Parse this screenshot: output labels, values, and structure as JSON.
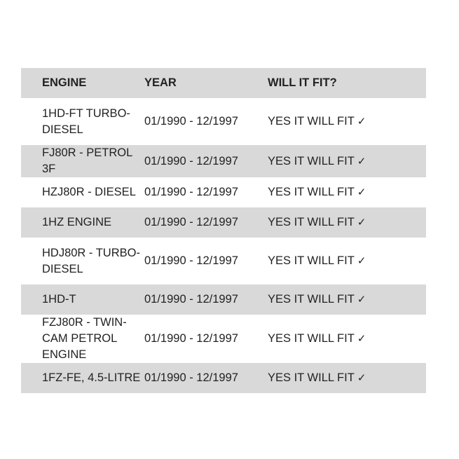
{
  "headers": {
    "engine": "ENGINE",
    "year": "YEAR",
    "fit": "WILL IT FIT?"
  },
  "rows": [
    {
      "engine": "1HD-FT TURBO-DIESEL",
      "year": "01/1990 - 12/1997",
      "fit": "YES IT WILL FIT",
      "tall": true
    },
    {
      "engine": "FJ80R - PETROL 3F",
      "year": "01/1990 - 12/1997",
      "fit": "YES IT WILL FIT",
      "tall": false
    },
    {
      "engine": "HZJ80R - DIESEL",
      "year": "01/1990 - 12/1997",
      "fit": "YES IT WILL FIT",
      "tall": false
    },
    {
      "engine": "1HZ ENGINE",
      "year": "01/1990 - 12/1997",
      "fit": "YES IT WILL FIT",
      "tall": false
    },
    {
      "engine": "HDJ80R - TURBO-DIESEL",
      "year": "01/1990 - 12/1997",
      "fit": "YES IT WILL FIT",
      "tall": true
    },
    {
      "engine": "1HD-T",
      "year": "01/1990 - 12/1997",
      "fit": "YES IT WILL FIT",
      "tall": false
    },
    {
      "engine": "FZJ80R - TWIN-CAM PETROL ENGINE",
      "year": "01/1990 - 12/1997",
      "fit": "YES IT WILL FIT",
      "tall": true
    },
    {
      "engine": "1FZ-FE, 4.5-LITRE",
      "year": "01/1990 - 12/1997",
      "fit": "YES IT WILL FIT",
      "tall": false
    }
  ],
  "check_icon": "checkmark-icon",
  "colors": {
    "stripe": "#d9d9d9",
    "text": "#222222"
  }
}
